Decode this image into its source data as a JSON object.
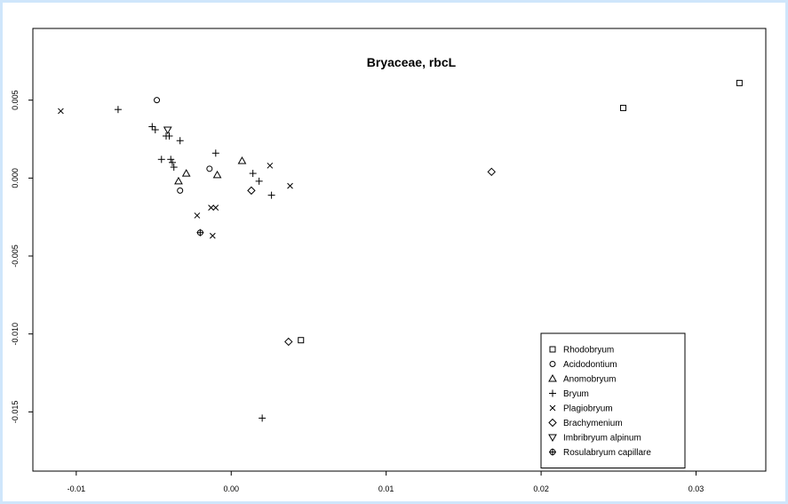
{
  "chart_data": {
    "type": "scatter",
    "title": "Bryaceae, rbcL",
    "xlabel": "",
    "ylabel": "",
    "xlim": [
      -0.0128,
      0.0345
    ],
    "ylim": [
      -0.0188,
      0.0096
    ],
    "x_ticks": [
      -0.01,
      0.0,
      0.01,
      0.02,
      0.03
    ],
    "x_tick_labels": [
      "-0.01",
      "0.00",
      "0.01",
      "0.02",
      "0.03"
    ],
    "y_ticks": [
      0.005,
      0.0,
      -0.005,
      -0.01,
      -0.015
    ],
    "y_tick_labels": [
      "0.005",
      "0.000",
      "-0.005",
      "-0.010",
      "-0.015"
    ],
    "grid": false,
    "legend_position": "bottom-right",
    "series": [
      {
        "name": "Rhodobryum",
        "marker": "square",
        "points": [
          [
            0.0328,
            0.0061
          ],
          [
            0.0253,
            0.0045
          ],
          [
            0.0045,
            -0.0104
          ]
        ]
      },
      {
        "name": "Acidodontium",
        "marker": "circle",
        "points": [
          [
            -0.0048,
            0.005
          ],
          [
            -0.0014,
            0.0006
          ],
          [
            -0.0033,
            -0.0008
          ]
        ]
      },
      {
        "name": "Anomobryum",
        "marker": "triangle-up",
        "points": [
          [
            0.0007,
            0.0011
          ],
          [
            -0.0029,
            0.0003
          ],
          [
            -0.0009,
            0.0002
          ],
          [
            -0.0034,
            -0.0002
          ]
        ]
      },
      {
        "name": "Bryum",
        "marker": "plus",
        "points": [
          [
            -0.0073,
            0.0044
          ],
          [
            -0.0051,
            0.0033
          ],
          [
            -0.0049,
            0.0031
          ],
          [
            -0.0042,
            0.0027
          ],
          [
            -0.004,
            0.0027
          ],
          [
            -0.0033,
            0.0024
          ],
          [
            -0.0045,
            0.0012
          ],
          [
            -0.0039,
            0.0012
          ],
          [
            -0.0038,
            0.001
          ],
          [
            -0.0037,
            0.0007
          ],
          [
            -0.001,
            0.0016
          ],
          [
            0.0014,
            0.0003
          ],
          [
            0.0018,
            -0.0002
          ],
          [
            0.0026,
            -0.0011
          ],
          [
            0.002,
            -0.0154
          ]
        ]
      },
      {
        "name": "Plagiobryum",
        "marker": "x",
        "points": [
          [
            -0.011,
            0.0043
          ],
          [
            0.0025,
            0.0008
          ],
          [
            0.0038,
            -0.0005
          ],
          [
            -0.0013,
            -0.0019
          ],
          [
            -0.001,
            -0.0019
          ],
          [
            -0.0022,
            -0.0024
          ],
          [
            -0.0012,
            -0.0037
          ]
        ]
      },
      {
        "name": "Brachymenium",
        "marker": "diamond",
        "points": [
          [
            0.0168,
            0.0004
          ],
          [
            0.0013,
            -0.0008
          ],
          [
            0.0037,
            -0.0105
          ]
        ]
      },
      {
        "name": "Imbribryum alpinum",
        "marker": "triangle-down",
        "points": [
          [
            -0.0041,
            0.0031
          ]
        ]
      },
      {
        "name": "Rosulabryum capillare",
        "marker": "circle-plus",
        "points": [
          [
            -0.002,
            -0.0035
          ]
        ]
      }
    ]
  }
}
